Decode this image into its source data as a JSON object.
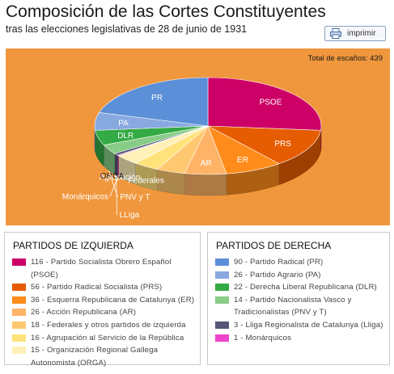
{
  "header": {
    "title": "Composición de las Cortes Constituyentes",
    "subtitle": "tras las elecciones legislativas de 28 de junio de 1931",
    "print_label": "imprimir"
  },
  "chart_data": {
    "type": "pie",
    "total_label": "Total de escaños: 439",
    "colors": {
      "PSOE": "#cc0066",
      "PRS": "#e65c00",
      "ER": "#ff8c1a",
      "AR": "#ffb366",
      "Federales": "#ffc870",
      "Agrupación": "#ffe27a",
      "ORGA": "#fff0b8",
      "Monárquicos": "#ee44cc",
      "LLiga": "#555577",
      "PNV y T": "#88cc88",
      "DLR": "#33aa44",
      "PA": "#88a8e0",
      "PR": "#5b8fd8"
    },
    "slices": [
      {
        "label": "PSOE",
        "value": 116
      },
      {
        "label": "PRS",
        "value": 56
      },
      {
        "label": "ER",
        "value": 36
      },
      {
        "label": "AR",
        "value": 26
      },
      {
        "label": "Federales",
        "value": 18
      },
      {
        "label": "Agrupación",
        "value": 16
      },
      {
        "label": "ORGA",
        "value": 15
      },
      {
        "label": "Monárquicos",
        "value": 1
      },
      {
        "label": "LLiga",
        "value": 3
      },
      {
        "label": "PNV y T",
        "value": 14
      },
      {
        "label": "DLR",
        "value": 22
      },
      {
        "label": "PA",
        "value": 26
      },
      {
        "label": "PR",
        "value": 90
      }
    ]
  },
  "legend_left": {
    "title": "PARTIDOS DE IZQUIERDA",
    "items": [
      {
        "text": "116 - Partido Socialista Obrero Español (PSOE)",
        "color": "#cc0066"
      },
      {
        "text": "56 - Partido Radical Socialista (PRS)",
        "color": "#e65c00"
      },
      {
        "text": "36 - Esquerra Republicana de Catalunya (ER)",
        "color": "#ff8c1a"
      },
      {
        "text": "26 - Acción Republicana (AR)",
        "color": "#ffb366"
      },
      {
        "text": "18 - Federales y otros partidos de izquierda",
        "color": "#ffc870"
      },
      {
        "text": "16 - Agrupación al Servicio de la República",
        "color": "#ffe27a"
      },
      {
        "text": "15 - Organización Regional Gallega Autonomista (ORGA)",
        "color": "#fff0b8"
      }
    ]
  },
  "legend_right": {
    "title": "PARTIDOS DE DERECHA",
    "items": [
      {
        "text": "90 - Partido Radical (PR)",
        "color": "#5b8fd8"
      },
      {
        "text": "26 - Partido Agrario (PA)",
        "color": "#88a8e0"
      },
      {
        "text": "22 - Derecha Liberal Republicana (DLR)",
        "color": "#33aa44"
      },
      {
        "text": "14 - Partido Nacionalista Vasco y Tradicionalistas (PNV y T)",
        "color": "#88cc88"
      },
      {
        "text": "3 - Lliga Regionalista de Catalunya (Lliga)",
        "color": "#555577"
      },
      {
        "text": "1 - Monárquicos",
        "color": "#ee44cc"
      }
    ]
  }
}
